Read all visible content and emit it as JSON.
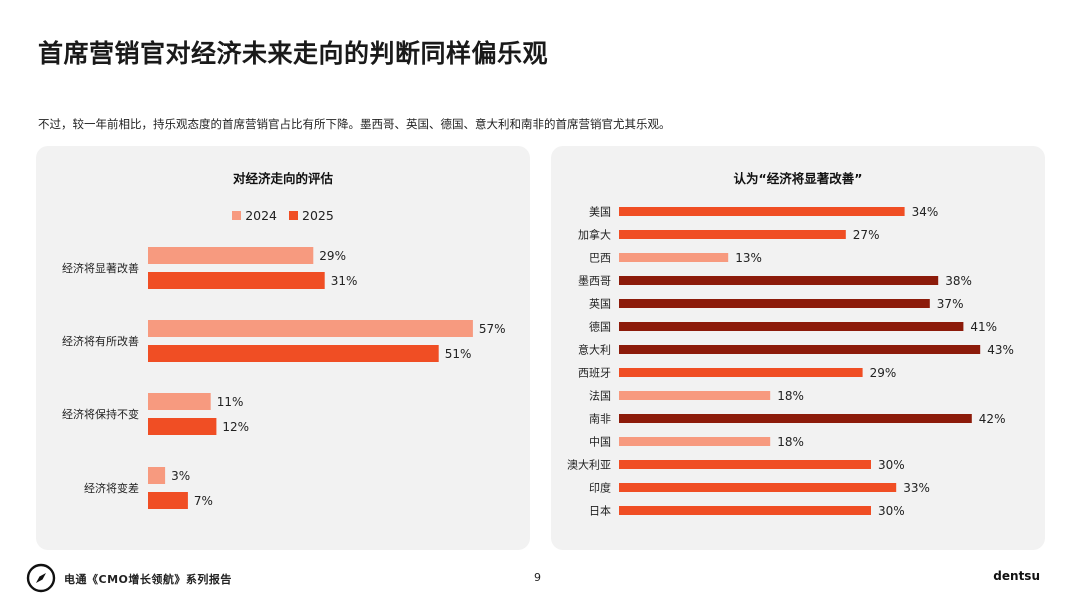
{
  "header": {
    "title": "首席营销官对经济未来走向的判断同样偏乐观",
    "subtitle": "不过，较一年前相比，持乐观态度的首席营销官占比有所下降。墨西哥、英国、德国、意大利和南非的首席营销官尤其乐观。"
  },
  "footer": {
    "label": "电通《CMO增长领航》系列报告",
    "page_number": "9",
    "brand": "dentsu",
    "logo_icon": "compass-icon"
  },
  "chart_data": [
    {
      "type": "bar",
      "orientation": "horizontal",
      "title": "对经济走向的评估",
      "categories": [
        "经济将显著改善",
        "经济将有所改善",
        "经济将保持不变",
        "经济将变差"
      ],
      "series": [
        {
          "name": "2024",
          "values": [
            29,
            57,
            11,
            3
          ],
          "labels": [
            "29%",
            "57%",
            "11%",
            "3%"
          ],
          "color": "#f79a7f"
        },
        {
          "name": "2025",
          "values": [
            31,
            51,
            12,
            7
          ],
          "labels": [
            "31%",
            "51%",
            "12%",
            "7%"
          ],
          "color": "#f04e24"
        }
      ],
      "legend_position": "top-center",
      "xlim": [
        0,
        60
      ],
      "grid": false
    },
    {
      "type": "bar",
      "orientation": "horizontal",
      "title": "认为“经济将显著改善”",
      "categories": [
        "美国",
        "加拿大",
        "巴西",
        "墨西哥",
        "英国",
        "德国",
        "意大利",
        "西班牙",
        "法国",
        "南非",
        "中国",
        "澳大利亚",
        "印度",
        "日本"
      ],
      "values": [
        34,
        27,
        13,
        38,
        37,
        41,
        43,
        29,
        18,
        42,
        18,
        30,
        33,
        30
      ],
      "labels": [
        "34%",
        "27%",
        "13%",
        "38%",
        "37%",
        "41%",
        "43%",
        "29%",
        "18%",
        "42%",
        "18%",
        "30%",
        "33%",
        "30%"
      ],
      "colors": [
        "#f04e24",
        "#f04e24",
        "#f79a7f",
        "#8c1b0a",
        "#8c1b0a",
        "#8c1b0a",
        "#8c1b0a",
        "#f04e24",
        "#f79a7f",
        "#8c1b0a",
        "#f79a7f",
        "#f04e24",
        "#f04e24",
        "#f04e24"
      ],
      "xlim": [
        0,
        45
      ],
      "grid": false
    }
  ]
}
